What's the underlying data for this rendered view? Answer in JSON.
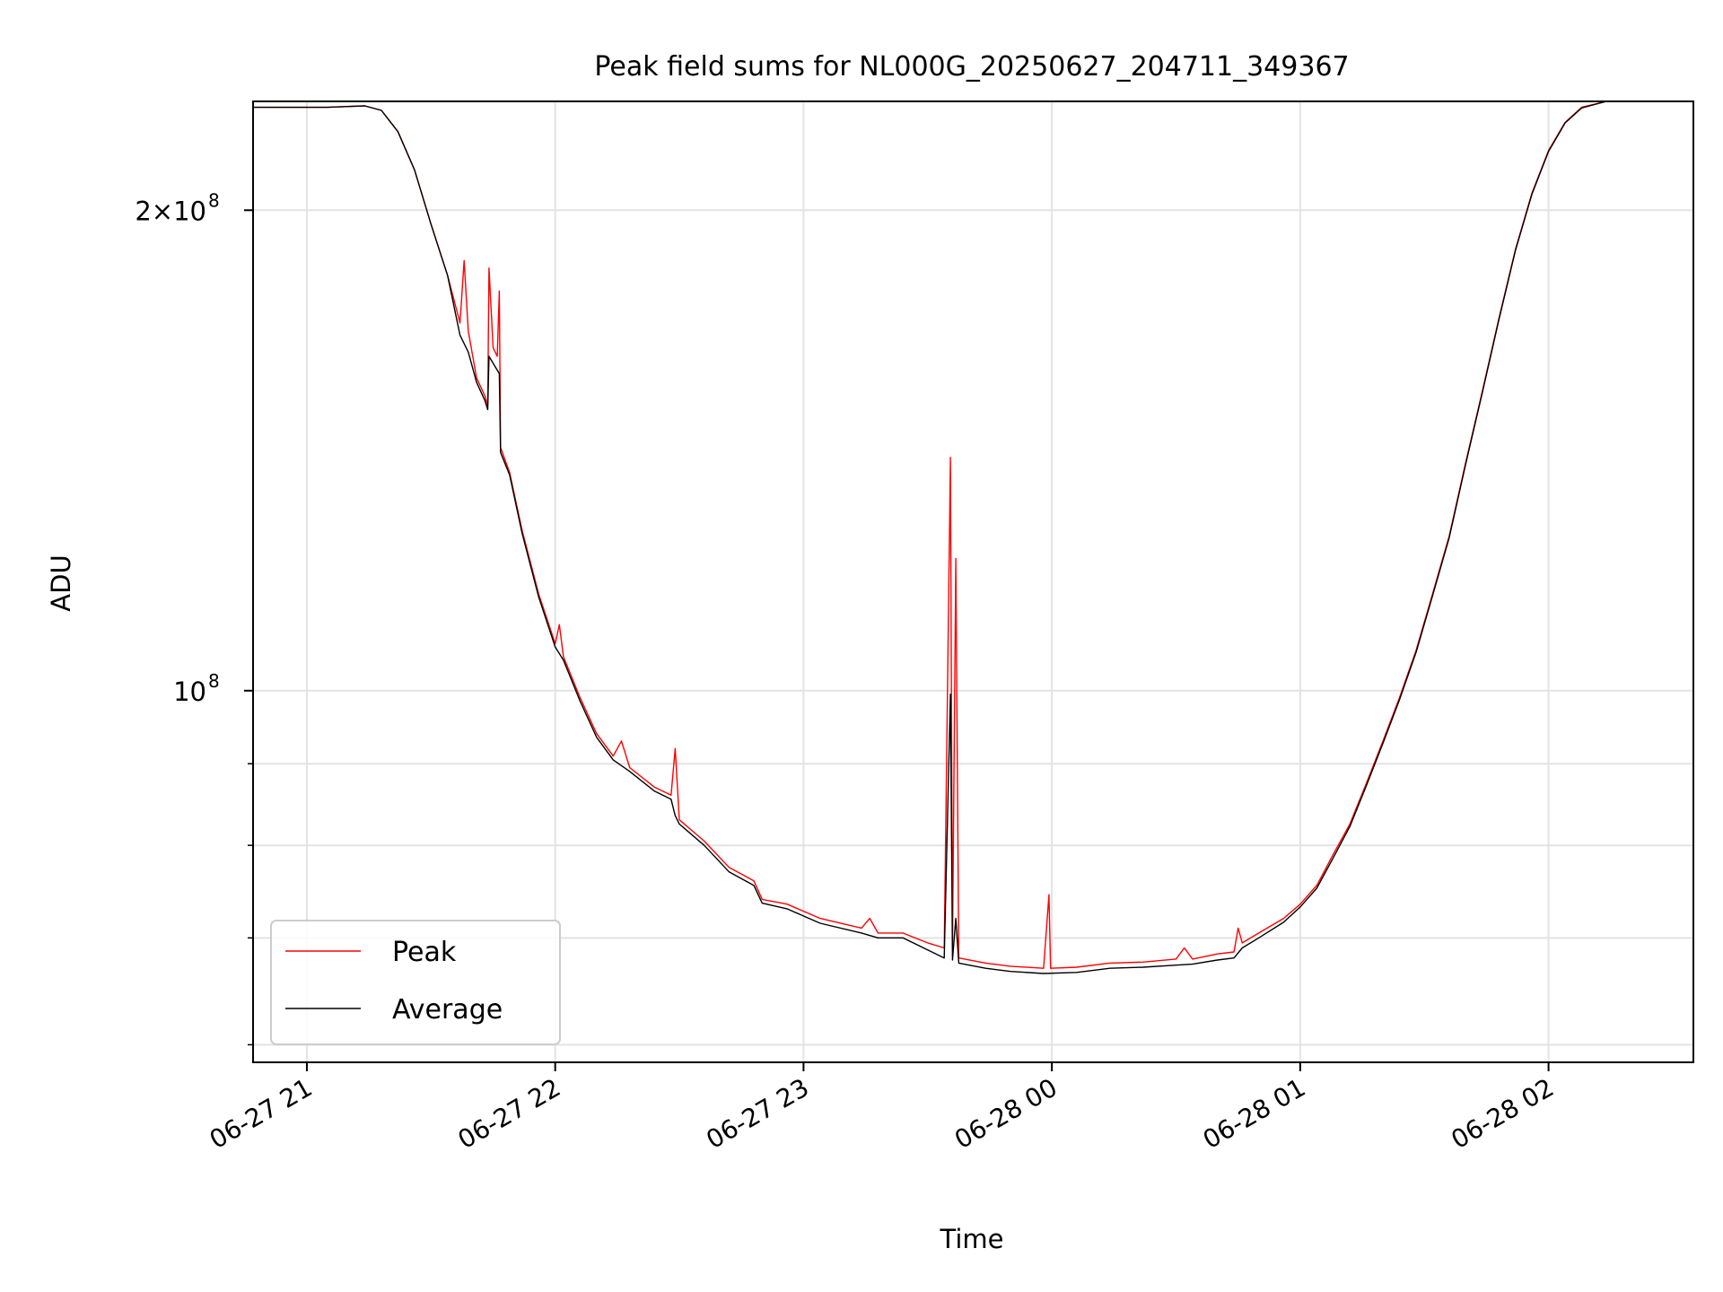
{
  "chart_data": {
    "type": "line",
    "title": "Peak field sums for NL000G_20250627_204711_349367",
    "xlabel": "Time",
    "ylabel": "ADU",
    "y_scale": "log",
    "grid": true,
    "legend_position": "lower-left",
    "xlim": [
      "2025-06-27T20:47",
      "2025-06-28T02:35"
    ],
    "ylim": [
      58500000,
      234000000
    ],
    "x_ticks": [
      {
        "value": "2025-06-27T21:00",
        "label": "06-27 21"
      },
      {
        "value": "2025-06-27T22:00",
        "label": "06-27 22"
      },
      {
        "value": "2025-06-27T23:00",
        "label": "06-27 23"
      },
      {
        "value": "2025-06-28T00:00",
        "label": "06-28 00"
      },
      {
        "value": "2025-06-28T01:00",
        "label": "06-28 01"
      },
      {
        "value": "2025-06-28T02:00",
        "label": "06-28 02"
      }
    ],
    "y_ticks": [
      {
        "value": 200000000,
        "base": "2×10",
        "exp": "8"
      },
      {
        "value": 100000000,
        "base": "10",
        "exp": "8"
      }
    ],
    "y_minor_ticks": [
      60000000,
      70000000,
      80000000,
      90000000
    ],
    "series": [
      {
        "name": "Peak",
        "color": "#ff0000",
        "points": [
          [
            "2025-06-27T20:47",
            232000000
          ],
          [
            "2025-06-27T21:05",
            232000000
          ],
          [
            "2025-06-27T21:14",
            232500000
          ],
          [
            "2025-06-27T21:18",
            231000000
          ],
          [
            "2025-06-27T21:22",
            224000000
          ],
          [
            "2025-06-27T21:26",
            212000000
          ],
          [
            "2025-06-27T21:30",
            196000000
          ],
          [
            "2025-06-27T21:34",
            182000000
          ],
          [
            "2025-06-27T21:37",
            170000000
          ],
          [
            "2025-06-27T21:38",
            186000000
          ],
          [
            "2025-06-27T21:39",
            168000000
          ],
          [
            "2025-06-27T21:41",
            157000000
          ],
          [
            "2025-06-27T21:43",
            153000000
          ],
          [
            "2025-06-27T21:43.7",
            151000000
          ],
          [
            "2025-06-27T21:44",
            184000000
          ],
          [
            "2025-06-27T21:45",
            164000000
          ],
          [
            "2025-06-27T21:46",
            162000000
          ],
          [
            "2025-06-27T21:46.5",
            178000000
          ],
          [
            "2025-06-27T21:46.8",
            142000000
          ],
          [
            "2025-06-27T21:49",
            137000000
          ],
          [
            "2025-06-27T21:52",
            126000000
          ],
          [
            "2025-06-27T21:56",
            115000000
          ],
          [
            "2025-06-27T22:00",
            107000000
          ],
          [
            "2025-06-27T22:01",
            110000000
          ],
          [
            "2025-06-27T22:02",
            105000000
          ],
          [
            "2025-06-27T22:06",
            99000000
          ],
          [
            "2025-06-27T22:10",
            94000000
          ],
          [
            "2025-06-27T22:14",
            91000000
          ],
          [
            "2025-06-27T22:16",
            93000000
          ],
          [
            "2025-06-27T22:18",
            89500000
          ],
          [
            "2025-06-27T22:24",
            87000000
          ],
          [
            "2025-06-27T22:28",
            86000000
          ],
          [
            "2025-06-27T22:29",
            92000000
          ],
          [
            "2025-06-27T22:30",
            83000000
          ],
          [
            "2025-06-27T22:36",
            80500000
          ],
          [
            "2025-06-27T22:42",
            77500000
          ],
          [
            "2025-06-27T22:48",
            76000000
          ],
          [
            "2025-06-27T22:50",
            74000000
          ],
          [
            "2025-06-27T22:56",
            73500000
          ],
          [
            "2025-06-27T23:04",
            72000000
          ],
          [
            "2025-06-27T23:14",
            71000000
          ],
          [
            "2025-06-27T23:16",
            72000000
          ],
          [
            "2025-06-27T23:18",
            70500000
          ],
          [
            "2025-06-27T23:24",
            70500000
          ],
          [
            "2025-06-27T23:30",
            69500000
          ],
          [
            "2025-06-27T23:34",
            69000000
          ],
          [
            "2025-06-27T23:35.5",
            140000000
          ],
          [
            "2025-06-27T23:36",
            69000000
          ],
          [
            "2025-06-27T23:36.8",
            121000000
          ],
          [
            "2025-06-27T23:37.5",
            68000000
          ],
          [
            "2025-06-27T23:44",
            67500000
          ],
          [
            "2025-06-27T23:50",
            67200000
          ],
          [
            "2025-06-27T23:58",
            67000000
          ],
          [
            "2025-06-27T23:59.3",
            74500000
          ],
          [
            "2025-06-27T23:59.7",
            67000000
          ],
          [
            "2025-06-28T00:06",
            67100000
          ],
          [
            "2025-06-28T00:14",
            67500000
          ],
          [
            "2025-06-28T00:22",
            67600000
          ],
          [
            "2025-06-28T00:30",
            67900000
          ],
          [
            "2025-06-28T00:32",
            69000000
          ],
          [
            "2025-06-28T00:34",
            67900000
          ],
          [
            "2025-06-28T00:40",
            68400000
          ],
          [
            "2025-06-28T00:44",
            68600000
          ],
          [
            "2025-06-28T00:45",
            71000000
          ],
          [
            "2025-06-28T00:46",
            69500000
          ],
          [
            "2025-06-28T00:50",
            70500000
          ],
          [
            "2025-06-28T00:56",
            72000000
          ],
          [
            "2025-06-28T01:00",
            73500000
          ],
          [
            "2025-06-28T01:04",
            75500000
          ],
          [
            "2025-06-28T01:08",
            79000000
          ],
          [
            "2025-06-28T01:12",
            82500000
          ],
          [
            "2025-06-28T01:16",
            87500000
          ],
          [
            "2025-06-28T01:20",
            93000000
          ],
          [
            "2025-06-28T01:24",
            99000000
          ],
          [
            "2025-06-28T01:28",
            106000000
          ],
          [
            "2025-06-28T01:32",
            115000000
          ],
          [
            "2025-06-28T01:36",
            125000000
          ],
          [
            "2025-06-28T01:40",
            139000000
          ],
          [
            "2025-06-28T01:44",
            154000000
          ],
          [
            "2025-06-28T01:48",
            171000000
          ],
          [
            "2025-06-28T01:52",
            189000000
          ],
          [
            "2025-06-28T01:56",
            205000000
          ],
          [
            "2025-06-28T02:00",
            218000000
          ],
          [
            "2025-06-28T02:04",
            227000000
          ],
          [
            "2025-06-28T02:08",
            232000000
          ],
          [
            "2025-06-28T02:14",
            234000000
          ],
          [
            "2025-06-28T02:35",
            234000000
          ]
        ]
      },
      {
        "name": "Average",
        "color": "#000000",
        "points": [
          [
            "2025-06-27T20:47",
            232000000
          ],
          [
            "2025-06-27T21:05",
            232000000
          ],
          [
            "2025-06-27T21:14",
            232500000
          ],
          [
            "2025-06-27T21:18",
            231000000
          ],
          [
            "2025-06-27T21:22",
            224000000
          ],
          [
            "2025-06-27T21:26",
            212000000
          ],
          [
            "2025-06-27T21:30",
            196000000
          ],
          [
            "2025-06-27T21:34",
            182000000
          ],
          [
            "2025-06-27T21:37",
            167000000
          ],
          [
            "2025-06-27T21:39",
            163000000
          ],
          [
            "2025-06-27T21:41",
            156000000
          ],
          [
            "2025-06-27T21:43",
            152000000
          ],
          [
            "2025-06-27T21:43.7",
            150000000
          ],
          [
            "2025-06-27T21:44",
            162000000
          ],
          [
            "2025-06-27T21:46.5",
            158000000
          ],
          [
            "2025-06-27T21:46.8",
            141000000
          ],
          [
            "2025-06-27T21:49",
            136500000
          ],
          [
            "2025-06-27T21:52",
            125500000
          ],
          [
            "2025-06-27T21:56",
            114500000
          ],
          [
            "2025-06-27T22:00",
            106500000
          ],
          [
            "2025-06-27T22:02",
            104500000
          ],
          [
            "2025-06-27T22:06",
            98500000
          ],
          [
            "2025-06-27T22:10",
            93500000
          ],
          [
            "2025-06-27T22:14",
            90500000
          ],
          [
            "2025-06-27T22:18",
            89000000
          ],
          [
            "2025-06-27T22:24",
            86500000
          ],
          [
            "2025-06-27T22:28",
            85500000
          ],
          [
            "2025-06-27T22:29",
            83500000
          ],
          [
            "2025-06-27T22:30",
            82500000
          ],
          [
            "2025-06-27T22:36",
            80000000
          ],
          [
            "2025-06-27T22:42",
            77000000
          ],
          [
            "2025-06-27T22:48",
            75500000
          ],
          [
            "2025-06-27T22:50",
            73600000
          ],
          [
            "2025-06-27T22:56",
            73000000
          ],
          [
            "2025-06-27T23:04",
            71500000
          ],
          [
            "2025-06-27T23:14",
            70500000
          ],
          [
            "2025-06-27T23:18",
            70000000
          ],
          [
            "2025-06-27T23:24",
            70000000
          ],
          [
            "2025-06-27T23:30",
            68800000
          ],
          [
            "2025-06-27T23:34",
            68000000
          ],
          [
            "2025-06-27T23:35.5",
            99500000
          ],
          [
            "2025-06-27T23:36",
            67800000
          ],
          [
            "2025-06-27T23:36.8",
            72000000
          ],
          [
            "2025-06-27T23:37.5",
            67500000
          ],
          [
            "2025-06-27T23:44",
            67000000
          ],
          [
            "2025-06-27T23:50",
            66700000
          ],
          [
            "2025-06-27T23:58",
            66500000
          ],
          [
            "2025-06-28T00:06",
            66600000
          ],
          [
            "2025-06-28T00:14",
            67000000
          ],
          [
            "2025-06-28T00:22",
            67100000
          ],
          [
            "2025-06-28T00:30",
            67300000
          ],
          [
            "2025-06-28T00:34",
            67400000
          ],
          [
            "2025-06-28T00:40",
            67800000
          ],
          [
            "2025-06-28T00:44",
            68000000
          ],
          [
            "2025-06-28T00:46",
            69000000
          ],
          [
            "2025-06-28T00:50",
            70000000
          ],
          [
            "2025-06-28T00:56",
            71600000
          ],
          [
            "2025-06-28T01:00",
            73200000
          ],
          [
            "2025-06-28T01:04",
            75200000
          ],
          [
            "2025-06-28T01:08",
            78600000
          ],
          [
            "2025-06-28T01:12",
            82200000
          ],
          [
            "2025-06-28T01:16",
            87200000
          ],
          [
            "2025-06-28T01:20",
            92700000
          ],
          [
            "2025-06-28T01:24",
            98700000
          ],
          [
            "2025-06-28T01:28",
            105700000
          ],
          [
            "2025-06-28T01:32",
            114700000
          ],
          [
            "2025-06-28T01:36",
            124700000
          ],
          [
            "2025-06-28T01:40",
            138700000
          ],
          [
            "2025-06-28T01:44",
            153700000
          ],
          [
            "2025-06-28T01:48",
            170700000
          ],
          [
            "2025-06-28T01:52",
            188700000
          ],
          [
            "2025-06-28T01:56",
            204700000
          ],
          [
            "2025-06-28T02:00",
            217700000
          ],
          [
            "2025-06-28T02:04",
            226800000
          ],
          [
            "2025-06-28T02:08",
            231800000
          ],
          [
            "2025-06-28T02:14",
            234000000
          ],
          [
            "2025-06-28T02:35",
            234000000
          ]
        ]
      }
    ]
  }
}
